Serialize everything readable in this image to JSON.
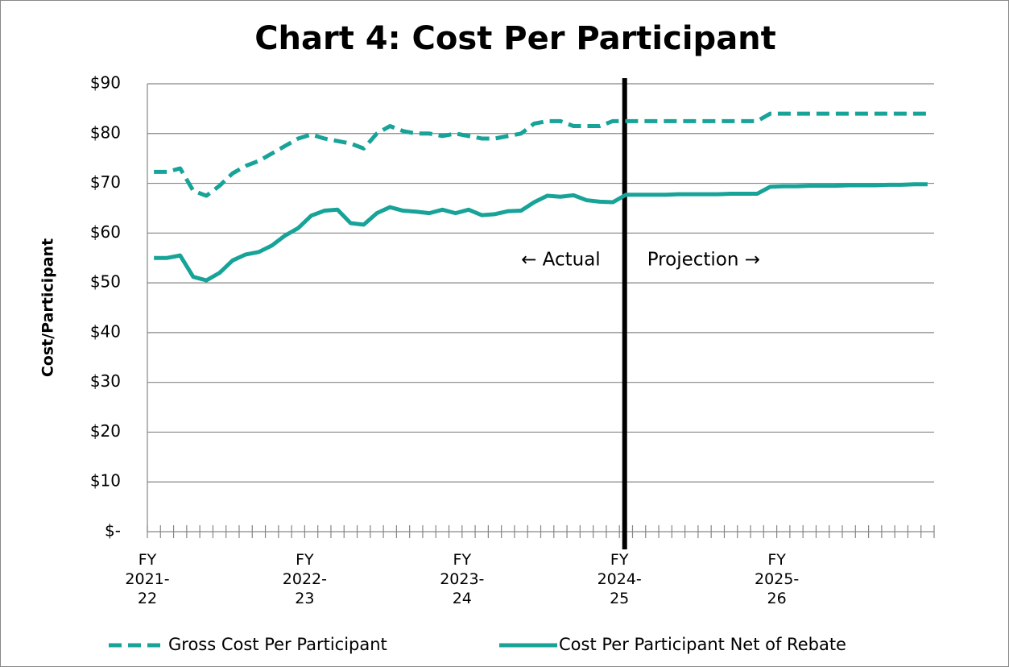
{
  "chart_data": {
    "type": "line",
    "title": "Chart 4: Cost Per Participant",
    "y_label": "Cost/Participant",
    "annotations": [
      "← Actual",
      "Projection →"
    ],
    "categories": [
      "FY 2021-22",
      null,
      null,
      null,
      null,
      null,
      null,
      null,
      null,
      null,
      null,
      null,
      "FY 2022-23",
      null,
      null,
      null,
      null,
      null,
      null,
      null,
      null,
      null,
      null,
      null,
      "FY 2023-24",
      null,
      null,
      null,
      null,
      null,
      null,
      null,
      null,
      null,
      null,
      null,
      "FY 2024-25",
      null,
      null,
      null,
      null,
      null,
      null,
      null,
      null,
      null,
      null,
      null,
      "FY 2025-26",
      null,
      null,
      null,
      null,
      null,
      null,
      null,
      null,
      null,
      null,
      null
    ],
    "series": [
      {
        "name": "Gross Cost Per Participant",
        "color": "#17a398",
        "dash": true,
        "values": [
          72.3,
          72.3,
          73,
          68.5,
          67.5,
          69.5,
          72,
          73.5,
          74.5,
          76,
          77.5,
          79,
          79.8,
          79,
          78.5,
          78,
          77,
          80,
          81.5,
          80.5,
          80,
          80,
          79.5,
          80,
          79.5,
          79,
          79,
          79.5,
          80,
          82,
          82.5,
          82.5,
          81.5,
          81.5,
          81.5,
          82.5,
          82.5,
          82.5,
          82.5,
          82.5,
          82.5,
          82.5,
          82.5,
          82.5,
          82.5,
          82.5,
          82.5,
          84,
          84,
          84,
          84,
          84,
          84,
          84,
          84,
          84,
          84,
          84,
          84,
          84
        ]
      },
      {
        "name": "Cost Per Participant Net of Rebate",
        "color": "#17a398",
        "dash": false,
        "values": [
          55,
          55,
          55.5,
          51.2,
          50.5,
          52,
          54.5,
          55.7,
          56.2,
          57.5,
          59.5,
          61,
          63.5,
          64.5,
          64.7,
          62,
          61.7,
          64,
          65.2,
          64.5,
          64.3,
          64,
          64.7,
          64,
          64.7,
          63.6,
          63.8,
          64.4,
          64.5,
          66.2,
          67.5,
          67.3,
          67.6,
          66.6,
          66.3,
          66.2,
          67.7,
          67.7,
          67.7,
          67.7,
          67.8,
          67.8,
          67.8,
          67.8,
          67.9,
          67.9,
          67.9,
          69.3,
          69.4,
          69.4,
          69.5,
          69.5,
          69.5,
          69.6,
          69.6,
          69.6,
          69.7,
          69.7,
          69.8,
          69.8
        ]
      }
    ],
    "ylim": [
      0,
      90
    ],
    "yticks": [
      {
        "value": 0,
        "label": "$-"
      },
      {
        "value": 10,
        "label": "$10"
      },
      {
        "value": 20,
        "label": "$20"
      },
      {
        "value": 30,
        "label": "$30"
      },
      {
        "value": 40,
        "label": "$40"
      },
      {
        "value": 50,
        "label": "$50"
      },
      {
        "value": 60,
        "label": "$60"
      },
      {
        "value": 70,
        "label": "$70"
      },
      {
        "value": 80,
        "label": "$80"
      },
      {
        "value": 90,
        "label": "$90"
      }
    ],
    "grid": true,
    "legend": "bottom"
  }
}
